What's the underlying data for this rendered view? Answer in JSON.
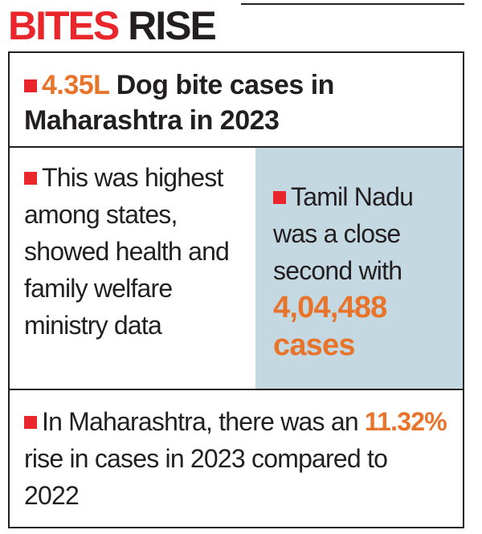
{
  "header": {
    "title_highlight": "BITES",
    "title_rest": "RISE"
  },
  "facts": [
    {
      "highlight": "4.35L",
      "text": "Dog bite cases in Maharashtra in 2023"
    },
    {
      "text": "This was highest among states, showed health and family welfare ministry data"
    },
    {
      "text": "Tamil Nadu was a close second with",
      "highlight": "4,04,488 cases"
    },
    {
      "text": "In Maharashtra, there was an",
      "highlight": "11.32%",
      "text_after": "rise in cases in 2023 compared to 2022"
    }
  ]
}
